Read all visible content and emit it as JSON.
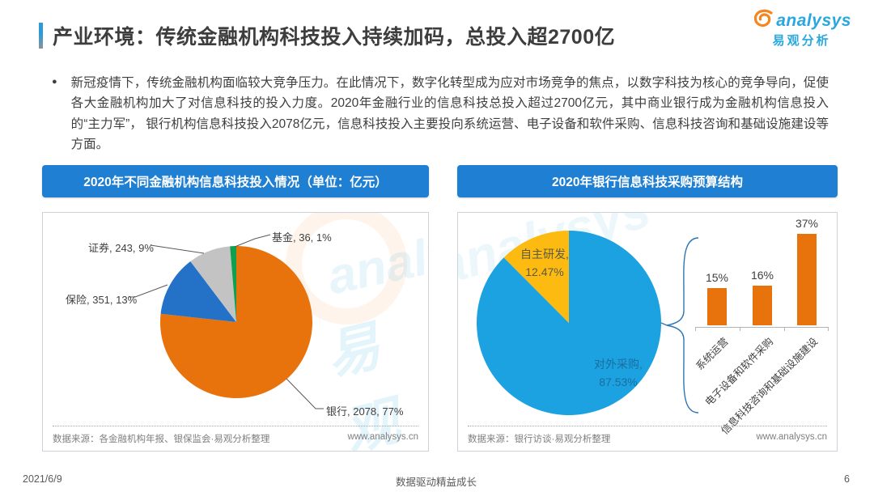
{
  "header": {
    "title": "产业环境：传统金融机构科技投入持续加码，总投入超2700亿",
    "logo": {
      "brand": "analysys",
      "brand_cn": "易观分析"
    }
  },
  "intro": {
    "text": "新冠疫情下，传统金融机构面临较大竞争压力。在此情况下，数字化转型成为应对市场竞争的焦点，以数字科技为核心的竞争导向，促使各大金融机构加大了对信息科技的投入力度。2020年金融行业的信息科技总投入超过2700亿元，其中商业银行成为金融机构信息投入的“主力军”， 银行机构信息科技投入2078亿元，信息科技投入主要投向系统运营、电子设备和软件采购、信息科技咨询和基础设施建设等方面。"
  },
  "sources": {
    "left": {
      "label": "数据来源：各金融机构年报、银保监会·易观分析整理",
      "url": "www.analysys.cn"
    },
    "right": {
      "label": "数据来源：银行访谈·易观分析整理",
      "url": "www.analysys.cn"
    }
  },
  "watermark": {
    "cn": "易观",
    "en": "analysys"
  },
  "footer": {
    "date": "2021/6/9",
    "center": "数据驱动精益成长",
    "page": "6"
  },
  "chart_data": [
    {
      "type": "pie",
      "title": "2020年不同金融机构信息科技投入情况（单位：亿元）",
      "unit": "亿元",
      "start": "12-o-clock, clockwise",
      "total": 2708,
      "slices": [
        {
          "name": "银行",
          "value": 2078,
          "pct": "77%",
          "label": "银行, 2078, 77%",
          "color": "#e8720c"
        },
        {
          "name": "保险",
          "value": 351,
          "pct": "13%",
          "label": "保险, 351, 13%",
          "color": "#2472c8"
        },
        {
          "name": "证券",
          "value": 243,
          "pct": "9%",
          "label": "证券, 243, 9%",
          "color": "#c3c3c3"
        },
        {
          "name": "基金",
          "value": 36,
          "pct": "1%",
          "label": "基金, 36, 1%",
          "color": "#0ea04f"
        }
      ]
    },
    {
      "type": "pie",
      "title": "2020年银行信息科技采购预算结构",
      "start": "12-o-clock, clockwise",
      "slices": [
        {
          "name": "对外采购",
          "value": 87.53,
          "label_line1": "对外采购,",
          "label_line2": "87.53%",
          "color": "#1ca2e0"
        },
        {
          "name": "自主研发",
          "value": 12.47,
          "label_line1": "自主研发,",
          "label_line2": "12.47%",
          "color": "#fdbb11"
        }
      ]
    },
    {
      "type": "bar",
      "categories": [
        "系统运营",
        "电子设备和软件采购",
        "信息科技咨询和基础设施建设"
      ],
      "values": [
        15,
        16,
        37
      ],
      "value_labels": [
        "15%",
        "16%",
        "37%"
      ],
      "bar_color": "#e8720c",
      "ylim": [
        0,
        40
      ],
      "legend": "none",
      "grid": false
    }
  ]
}
